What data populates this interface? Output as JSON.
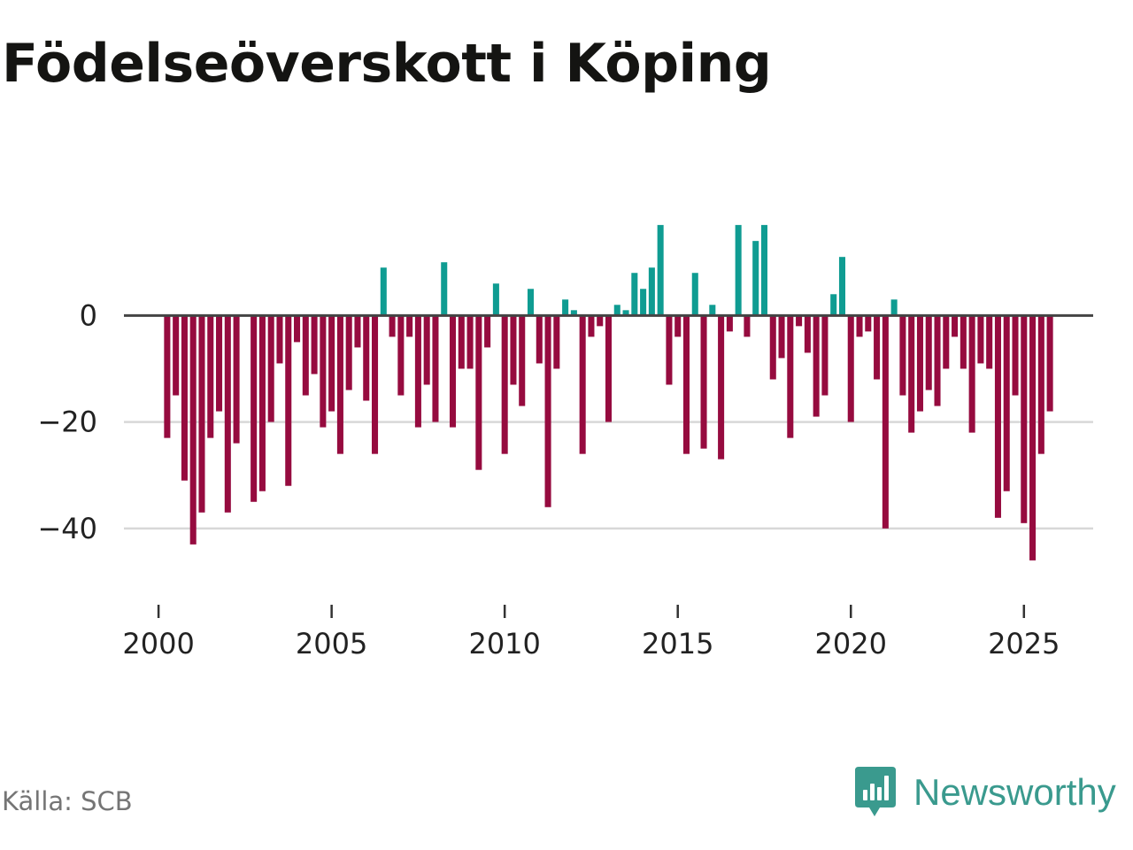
{
  "title": "Födelseöverskott i Köping",
  "source": "Källa: SCB",
  "brand": {
    "name": "Newsworthy"
  },
  "colors": {
    "positive": "#0f9c92",
    "negative": "#960b3f",
    "zero_line": "#444444",
    "grid": "#d8d8d8",
    "brand": "#3a9a8e"
  },
  "chart_data": {
    "type": "bar",
    "title": "Födelseöverskott i Köping",
    "xlabel": "",
    "ylabel": "",
    "frequency": "quarterly",
    "x_start": 2000.25,
    "x_step": 0.25,
    "xlim": [
      1999.0,
      2027.0
    ],
    "ylim": [
      -53,
      26
    ],
    "y_ticks": [
      0,
      -20,
      -40
    ],
    "y_tick_labels": [
      "0",
      "−20",
      "−40"
    ],
    "x_ticks": [
      2000,
      2005,
      2010,
      2015,
      2020,
      2025
    ],
    "x_tick_labels": [
      "2000",
      "2005",
      "2010",
      "2015",
      "2020",
      "2025"
    ],
    "values": [
      -23,
      -15,
      -31,
      -43,
      -37,
      -23,
      -18,
      -37,
      -24,
      0,
      -35,
      -33,
      -20,
      -9,
      -32,
      -5,
      -15,
      -11,
      -21,
      -18,
      -26,
      -14,
      -6,
      -16,
      -26,
      9,
      -4,
      -15,
      -4,
      -21,
      -13,
      -20,
      10,
      -21,
      -10,
      -10,
      -29,
      -6,
      6,
      -26,
      -13,
      -17,
      5,
      -9,
      -36,
      -10,
      3,
      1,
      -26,
      -4,
      -2,
      -20,
      2,
      1,
      8,
      5,
      9,
      17,
      -13,
      -4,
      -26,
      8,
      -25,
      2,
      -27,
      -3,
      17,
      -4,
      14,
      17,
      -12,
      -8,
      -23,
      -2,
      -7,
      -19,
      -15,
      4,
      11,
      -20,
      -4,
      -3,
      -12,
      -40,
      3,
      -15,
      -22,
      -18,
      -14,
      -17,
      -10,
      -4,
      -10,
      -22,
      -9,
      -10,
      -38,
      -33,
      -15,
      -39,
      -46,
      -26,
      -18
    ]
  }
}
